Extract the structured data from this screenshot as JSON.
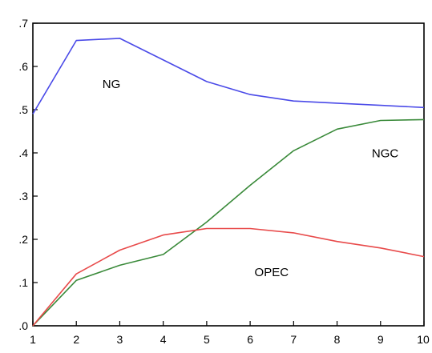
{
  "chart_data": {
    "type": "line",
    "title": "",
    "xlabel": "",
    "ylabel": "",
    "x": [
      1,
      2,
      3,
      4,
      5,
      6,
      7,
      8,
      9,
      10
    ],
    "xlim": [
      1,
      10
    ],
    "ylim": [
      0,
      0.7
    ],
    "x_ticks": [
      1,
      2,
      3,
      4,
      5,
      6,
      7,
      8,
      9,
      10
    ],
    "x_tick_labels": [
      "1",
      "2",
      "3",
      "4",
      "5",
      "6",
      "7",
      "8",
      "9",
      "10"
    ],
    "y_ticks": [
      0,
      0.1,
      0.2,
      0.3,
      0.4,
      0.5,
      0.6,
      0.7
    ],
    "y_tick_labels": [
      ".0",
      ".1",
      ".2",
      ".3",
      ".4",
      ".5",
      ".6",
      ".7"
    ],
    "grid": false,
    "legend": "none",
    "series": [
      {
        "name": "NG",
        "color": "#4a4ae8",
        "values": [
          0.49,
          0.66,
          0.665,
          0.615,
          0.565,
          0.535,
          0.52,
          0.515,
          0.51,
          0.505
        ],
        "label_anchor": {
          "x": 2.6,
          "y": 0.55
        }
      },
      {
        "name": "NGC",
        "color": "#3a8a3a",
        "values": [
          0.0,
          0.105,
          0.14,
          0.165,
          0.24,
          0.325,
          0.405,
          0.455,
          0.475,
          0.477
        ],
        "label_anchor": {
          "x": 8.8,
          "y": 0.39
        }
      },
      {
        "name": "OPEC",
        "color": "#e84a4a",
        "values": [
          0.0,
          0.12,
          0.175,
          0.21,
          0.225,
          0.225,
          0.215,
          0.195,
          0.18,
          0.16
        ],
        "label_anchor": {
          "x": 6.1,
          "y": 0.115
        }
      }
    ]
  }
}
